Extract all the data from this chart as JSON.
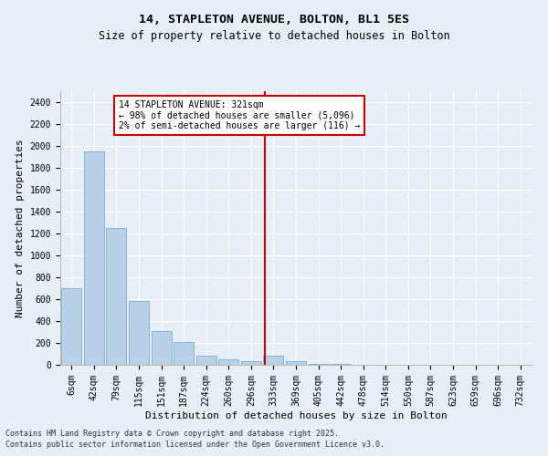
{
  "title1": "14, STAPLETON AVENUE, BOLTON, BL1 5ES",
  "title2": "Size of property relative to detached houses in Bolton",
  "xlabel": "Distribution of detached houses by size in Bolton",
  "ylabel": "Number of detached properties",
  "bar_labels": [
    "6sqm",
    "42sqm",
    "79sqm",
    "115sqm",
    "151sqm",
    "187sqm",
    "224sqm",
    "260sqm",
    "296sqm",
    "333sqm",
    "369sqm",
    "405sqm",
    "442sqm",
    "478sqm",
    "514sqm",
    "550sqm",
    "587sqm",
    "623sqm",
    "659sqm",
    "696sqm",
    "732sqm"
  ],
  "bar_values": [
    700,
    1950,
    1250,
    580,
    310,
    205,
    80,
    50,
    30,
    80,
    30,
    10,
    5,
    2,
    1,
    0,
    0,
    0,
    0,
    0,
    0
  ],
  "bar_color": "#b8d0e8",
  "bar_edge_color": "#7aaecc",
  "background_color": "#e8eef6",
  "grid_color": "#ffffff",
  "vline_x": 8.62,
  "annotation_text": "14 STAPLETON AVENUE: 321sqm\n← 98% of detached houses are smaller (5,096)\n2% of semi-detached houses are larger (116) →",
  "annotation_box_facecolor": "#ffffff",
  "annotation_box_edgecolor": "#cc0000",
  "vline_color": "#cc0000",
  "ylim": [
    0,
    2500
  ],
  "yticks": [
    0,
    200,
    400,
    600,
    800,
    1000,
    1200,
    1400,
    1600,
    1800,
    2000,
    2200,
    2400
  ],
  "footnote1": "Contains HM Land Registry data © Crown copyright and database right 2025.",
  "footnote2": "Contains public sector information licensed under the Open Government Licence v3.0.",
  "title1_fontsize": 9.5,
  "title2_fontsize": 8.5,
  "tick_fontsize": 7,
  "axis_label_fontsize": 8,
  "annotation_fontsize": 7,
  "footnote_fontsize": 6
}
